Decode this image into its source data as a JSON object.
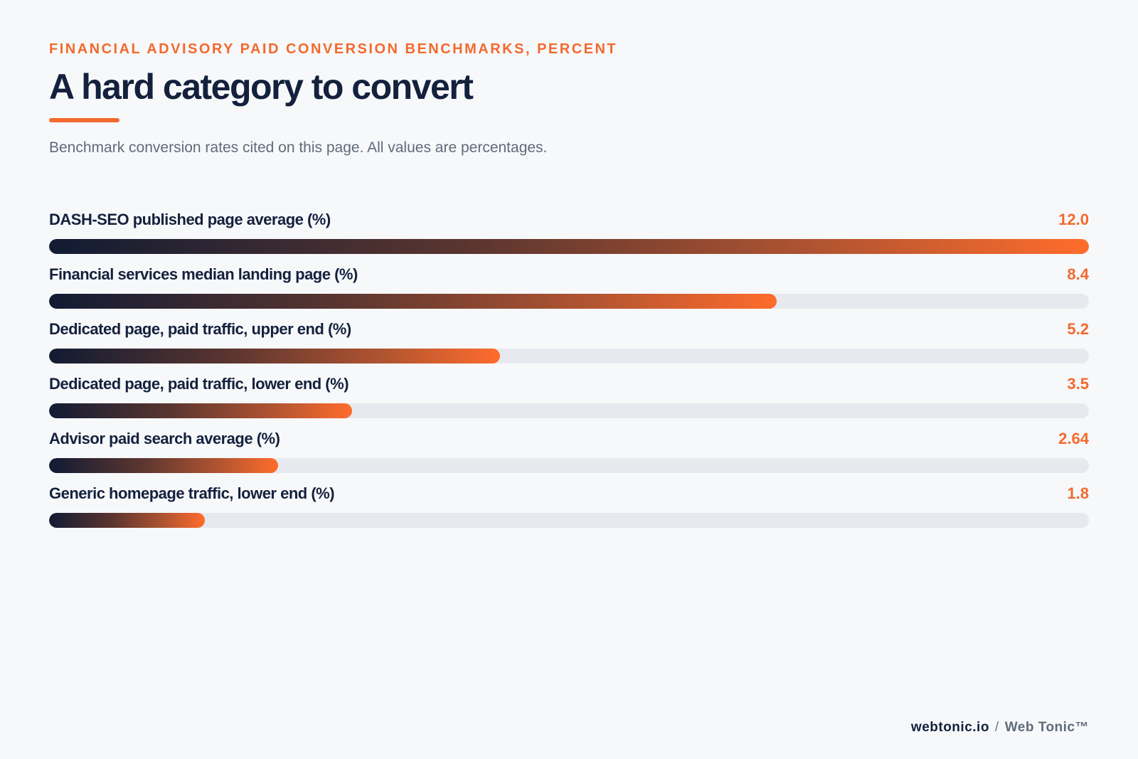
{
  "header": {
    "eyebrow": "FINANCIAL ADVISORY PAID CONVERSION BENCHMARKS, PERCENT",
    "title": "A hard category to convert",
    "subtitle": "Benchmark conversion rates cited on this page. All values are percentages."
  },
  "colors": {
    "accent": "#f26a2e",
    "heading": "#14213d",
    "subtitle": "#5f6b7b",
    "track": "#e6e9ed",
    "gradient_start": "#111b33",
    "gradient_end": "#ff6c2c",
    "background": "#f7f8fa"
  },
  "chart_data": {
    "type": "bar",
    "orientation": "horizontal",
    "categories": [
      "DASH-SEO published page average (%)",
      "Financial services median landing page (%)",
      "Dedicated page, paid traffic, upper end (%)",
      "Dedicated page, paid traffic, lower end (%)",
      "Advisor paid search average (%)",
      "Generic homepage traffic, lower end (%)"
    ],
    "values": [
      12.0,
      8.4,
      5.2,
      3.5,
      2.64,
      1.8
    ],
    "value_labels": [
      "12.0",
      "8.4",
      "5.2",
      "3.5",
      "2.64",
      "1.8"
    ],
    "xlim": [
      0,
      12.0
    ],
    "grid": false,
    "legend": "none"
  },
  "footer": {
    "brand": "webtonic.io",
    "separator": "/",
    "product": "Web Tonic™"
  }
}
